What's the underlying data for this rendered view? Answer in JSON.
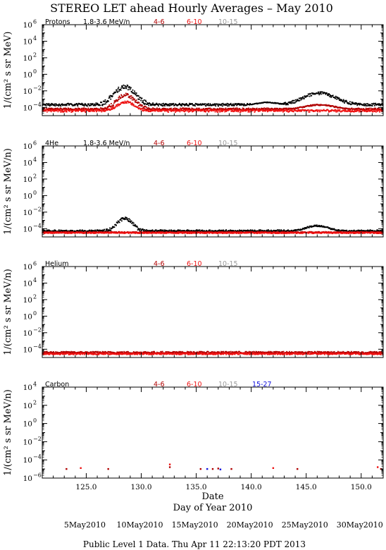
{
  "title": "STEREO LET ahead Hourly Averages – May 2010",
  "footer": "Public Level 1 Data. Thu Apr 11 22:13:20 PDT 2013",
  "colors": {
    "black": "#000000",
    "dark_red": "#b00000",
    "red": "#ee1111",
    "gray": "#999999",
    "blue": "#1111dd"
  },
  "chart_data": {
    "type": "scatter",
    "xlabel_top": "Date",
    "xlabel": "Day of Year 2010",
    "xlim": [
      121,
      152
    ],
    "x_ticks": [
      "125.0",
      "130.0",
      "135.0",
      "140.0",
      "145.0",
      "150.0"
    ],
    "x_tick_values": [
      125,
      130,
      135,
      140,
      145,
      150
    ],
    "date_labels": [
      {
        "label": "5May2010",
        "doy": 125
      },
      {
        "label": "10May2010",
        "doy": 130
      },
      {
        "label": "15May2010",
        "doy": 135
      },
      {
        "label": "20May2010",
        "doy": 140
      },
      {
        "label": "25May2010",
        "doy": 145
      },
      {
        "label": "30May2010",
        "doy": 150
      }
    ],
    "panels": [
      {
        "name": "Protons",
        "ylabel": "1/(cm² s sr MeV)",
        "y_log_range": [
          -5,
          6
        ],
        "y_tick_exponents": [
          -4,
          -2,
          0,
          2,
          4,
          6
        ],
        "legend": [
          {
            "text": "Protons",
            "color": "#000000"
          },
          {
            "text": "1.8-3.6 MeV/n",
            "color": "#000000"
          },
          {
            "text": "4-6",
            "color": "#b00000"
          },
          {
            "text": "6-10",
            "color": "#ee1111"
          },
          {
            "text": "10-15",
            "color": "#999999"
          }
        ],
        "series": [
          {
            "name": "1.8-3.6 MeV/n",
            "color": "#000000",
            "base": -3.8,
            "noise": 0.25,
            "events": [
              {
                "center": 128.5,
                "width": 1.4,
                "peak": 2.3
              },
              {
                "center": 146.2,
                "width": 2.2,
                "peak": 1.5
              },
              {
                "center": 141.5,
                "width": 1.5,
                "peak": 0.4
              }
            ]
          },
          {
            "name": "4-6",
            "color": "#b00000",
            "base": -4.3,
            "noise": 0.2,
            "events": [
              {
                "center": 128.6,
                "width": 1.2,
                "peak": 1.8
              },
              {
                "center": 146.2,
                "width": 2.0,
                "peak": 0.6
              }
            ]
          },
          {
            "name": "6-10",
            "color": "#ee1111",
            "base": -4.45,
            "noise": 0.18,
            "events": [
              {
                "center": 128.6,
                "width": 1.1,
                "peak": 1.1
              }
            ]
          }
        ]
      },
      {
        "name": "4He",
        "ylabel": "1/(cm² s sr MeV/n)",
        "y_log_range": [
          -5,
          6
        ],
        "y_tick_exponents": [
          -4,
          -2,
          0,
          2,
          4,
          6
        ],
        "legend": [
          {
            "text": "4He",
            "color": "#000000"
          },
          {
            "text": "1.8-3.6 MeV/n",
            "color": "#000000"
          },
          {
            "text": "4-6",
            "color": "#b00000"
          },
          {
            "text": "6-10",
            "color": "#ee1111"
          },
          {
            "text": "10-15",
            "color": "#999999"
          }
        ],
        "series": [
          {
            "name": "1.8-3.6 MeV/n",
            "color": "#000000",
            "base": -4.35,
            "noise": 0.12,
            "events": [
              {
                "center": 128.5,
                "width": 1.0,
                "peak": 1.6
              },
              {
                "center": 146.0,
                "width": 1.5,
                "peak": 0.7
              }
            ]
          },
          {
            "name": "4-6",
            "color": "#b00000",
            "base": -4.45,
            "noise": 0.08,
            "events": []
          },
          {
            "name": "6-10",
            "color": "#ee1111",
            "base": -4.5,
            "noise": 0.08,
            "events": []
          }
        ]
      },
      {
        "name": "Helium",
        "ylabel": "1/(cm² s sr MeV/n)",
        "y_log_range": [
          -5,
          6
        ],
        "y_tick_exponents": [
          -4,
          -2,
          0,
          2,
          4,
          6
        ],
        "legend": [
          {
            "text": "Helium",
            "color": "#000000"
          },
          {
            "text": "4-6",
            "color": "#b00000"
          },
          {
            "text": "6-10",
            "color": "#ee1111"
          },
          {
            "text": "10-15",
            "color": "#999999"
          }
        ],
        "series": [
          {
            "name": "4-6",
            "color": "#b00000",
            "base": -4.4,
            "noise": 0.12,
            "events": []
          },
          {
            "name": "6-10",
            "color": "#ee1111",
            "base": -4.55,
            "noise": 0.1,
            "events": []
          }
        ]
      },
      {
        "name": "Carbon",
        "ylabel": "1/(cm² s sr MeV/n)",
        "y_log_range": [
          -6,
          4
        ],
        "y_tick_exponents": [
          -6,
          -4,
          -2,
          0,
          2,
          4
        ],
        "legend": [
          {
            "text": "Carbon",
            "color": "#000000"
          },
          {
            "text": "4-6",
            "color": "#b00000"
          },
          {
            "text": "6-10",
            "color": "#ee1111"
          },
          {
            "text": "10-15",
            "color": "#999999"
          },
          {
            "text": "15-27",
            "color": "#1111dd"
          }
        ],
        "sparse_points": [
          {
            "x": 123.2,
            "y": -5.0,
            "color": "#b00000"
          },
          {
            "x": 124.5,
            "y": -4.9,
            "color": "#ee1111"
          },
          {
            "x": 127.0,
            "y": -5.0,
            "color": "#b00000"
          },
          {
            "x": 132.6,
            "y": -4.5,
            "color": "#ee1111"
          },
          {
            "x": 132.6,
            "y": -4.8,
            "color": "#b00000"
          },
          {
            "x": 135.4,
            "y": -5.0,
            "color": "#b00000"
          },
          {
            "x": 136.0,
            "y": -5.0,
            "color": "#1111dd"
          },
          {
            "x": 136.5,
            "y": -5.0,
            "color": "#b00000"
          },
          {
            "x": 137.0,
            "y": -4.95,
            "color": "#b00000"
          },
          {
            "x": 137.2,
            "y": -5.05,
            "color": "#1111dd"
          },
          {
            "x": 138.2,
            "y": -5.0,
            "color": "#b00000"
          },
          {
            "x": 142.0,
            "y": -4.9,
            "color": "#ee1111"
          },
          {
            "x": 144.2,
            "y": -5.0,
            "color": "#b00000"
          },
          {
            "x": 151.5,
            "y": -4.8,
            "color": "#ee1111"
          },
          {
            "x": 151.8,
            "y": -5.0,
            "color": "#b00000"
          }
        ]
      }
    ]
  }
}
